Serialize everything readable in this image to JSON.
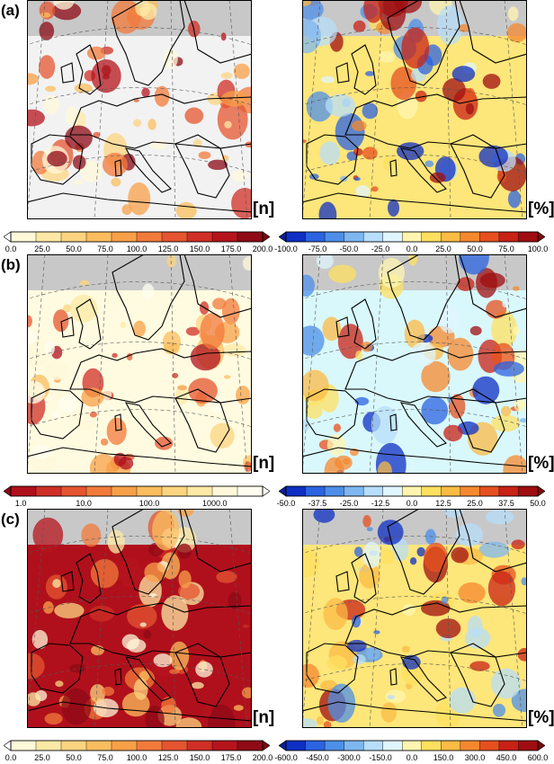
{
  "rows": [
    {
      "label": "(a)",
      "left": {
        "unit": "[n]",
        "land": "#f2f2f2",
        "colorbar": {
          "colors": [
            "#fff8d9",
            "#fde9a5",
            "#fcd480",
            "#fbbd5e",
            "#f8a048",
            "#f17a3b",
            "#e45530",
            "#cf2f26",
            "#b5141d",
            "#8e0a16"
          ],
          "ticks": [
            "0.0",
            "25.0",
            "50.0",
            "75.0",
            "100.0",
            "125.0",
            "150.0",
            "175.0",
            "200.0"
          ],
          "left_arrow": "#ffffff",
          "right_arrow": "#7a0a12"
        }
      },
      "right": {
        "unit": "[%]",
        "land": "#fde67a",
        "colorbar": {
          "colors": [
            "#0d2fc4",
            "#2b63e0",
            "#4d8fe8",
            "#7eb7f0",
            "#b7defa",
            "#dff5ff",
            "#fff5b0",
            "#fde060",
            "#fbbb45",
            "#f5882f",
            "#e6501f",
            "#c82116",
            "#9f0d10"
          ],
          "ticks": [
            "-100.0",
            "-75.0",
            "-50.0",
            "-25.0",
            "0.0",
            "25.0",
            "50.0",
            "75.0",
            "100.0"
          ],
          "left_arrow": "#0a1f8f",
          "right_arrow": "#7a0a0a"
        }
      }
    },
    {
      "label": "(b)",
      "left": {
        "unit": "[n]",
        "land": "#fffbe0",
        "colorbar": {
          "colors": [
            "#b0101c",
            "#cf2f26",
            "#e45530",
            "#f17a3b",
            "#f8a048",
            "#fbbd5e",
            "#fcd480",
            "#fde9a5",
            "#fff8d9",
            "#fffdf0"
          ],
          "ticks": [
            "1.0",
            "10.0",
            "100.0",
            "1000.0"
          ],
          "left_arrow": "#8e0a16",
          "right_arrow": "#fffff6"
        }
      },
      "right": {
        "unit": "[%]",
        "land": "#d9f8fb",
        "colorbar": {
          "colors": [
            "#0d2fc4",
            "#2b63e0",
            "#4d8fe8",
            "#7eb7f0",
            "#b7defa",
            "#dff5ff",
            "#fff5b0",
            "#fde060",
            "#fbbb45",
            "#f5882f",
            "#e6501f",
            "#c82116",
            "#9f0d10"
          ],
          "ticks": [
            "-50.0",
            "-37.5",
            "-25.0",
            "-12.5",
            "0.0",
            "12.5",
            "25.0",
            "37.5",
            "50.0"
          ],
          "left_arrow": "#0a1f8f",
          "right_arrow": "#7a0a0a"
        }
      }
    },
    {
      "label": "(c)",
      "left": {
        "unit": "[n]",
        "land": "#b0101c",
        "colorbar": {
          "colors": [
            "#fff8d9",
            "#fde9a5",
            "#fcd480",
            "#fbbd5e",
            "#f8a048",
            "#f17a3b",
            "#e45530",
            "#cf2f26",
            "#b5141d",
            "#8e0a16"
          ],
          "ticks": [
            "0.0",
            "25.0",
            "50.0",
            "75.0",
            "100.0",
            "125.0",
            "150.0",
            "175.0",
            "200.0"
          ],
          "left_arrow": "#ffffff",
          "right_arrow": "#7a0a12"
        }
      },
      "right": {
        "unit": "[%]",
        "land": "#fde67a",
        "colorbar": {
          "colors": [
            "#0d2fc4",
            "#2b63e0",
            "#4d8fe8",
            "#7eb7f0",
            "#b7defa",
            "#dff5ff",
            "#fff5b0",
            "#fde060",
            "#fbbb45",
            "#f5882f",
            "#e6501f",
            "#c82116",
            "#9f0d10"
          ],
          "ticks": [
            "-600.0",
            "-450.0",
            "-300.0",
            "-150.0",
            "0.0",
            "150.0",
            "300.0",
            "450.0",
            "600.0"
          ],
          "left_arrow": "#0a1f8f",
          "right_arrow": "#7a0a0a"
        }
      }
    }
  ]
}
